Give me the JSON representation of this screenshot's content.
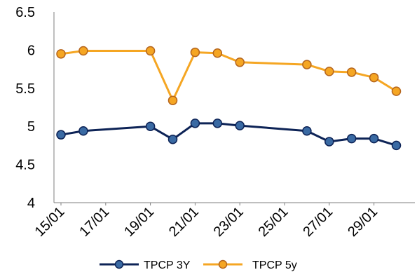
{
  "chart_data": {
    "type": "line",
    "title": "",
    "xlabel": "",
    "ylabel": "",
    "x_tick_labels": [
      "15/01",
      "17/01",
      "19/01",
      "21/01",
      "23/01",
      "25/01",
      "27/01",
      "29/01"
    ],
    "ylim": [
      4,
      6.5
    ],
    "yticks": [
      4,
      4.5,
      5,
      5.5,
      6,
      6.5
    ],
    "grid": false,
    "legend": "bottom",
    "series": [
      {
        "name": "TPCP 3Y",
        "color": "#0d2356",
        "marker_color": "#3a6aa3",
        "points": [
          {
            "x": "15/01",
            "y": 4.89
          },
          {
            "x": "16/01",
            "y": 4.94
          },
          {
            "x": "19/01",
            "y": 5.0
          },
          {
            "x": "20/01",
            "y": 4.83
          },
          {
            "x": "21/01",
            "y": 5.04
          },
          {
            "x": "22/01",
            "y": 5.04
          },
          {
            "x": "23/01",
            "y": 5.01
          },
          {
            "x": "26/01",
            "y": 4.94
          },
          {
            "x": "27/01",
            "y": 4.8
          },
          {
            "x": "28/01",
            "y": 4.84
          },
          {
            "x": "29/01",
            "y": 4.84
          },
          {
            "x": "30/01",
            "y": 4.75
          }
        ]
      },
      {
        "name": "TPCP 5y",
        "color": "#f5a623",
        "marker_color": "#f5a623",
        "points": [
          {
            "x": "15/01",
            "y": 5.95
          },
          {
            "x": "16/01",
            "y": 5.99
          },
          {
            "x": "19/01",
            "y": 5.99
          },
          {
            "x": "20/01",
            "y": 5.34
          },
          {
            "x": "21/01",
            "y": 5.97
          },
          {
            "x": "22/01",
            "y": 5.96
          },
          {
            "x": "23/01",
            "y": 5.84
          },
          {
            "x": "26/01",
            "y": 5.81
          },
          {
            "x": "27/01",
            "y": 5.72
          },
          {
            "x": "28/01",
            "y": 5.71
          },
          {
            "x": "29/01",
            "y": 5.64
          },
          {
            "x": "30/01",
            "y": 5.46
          }
        ]
      }
    ]
  }
}
